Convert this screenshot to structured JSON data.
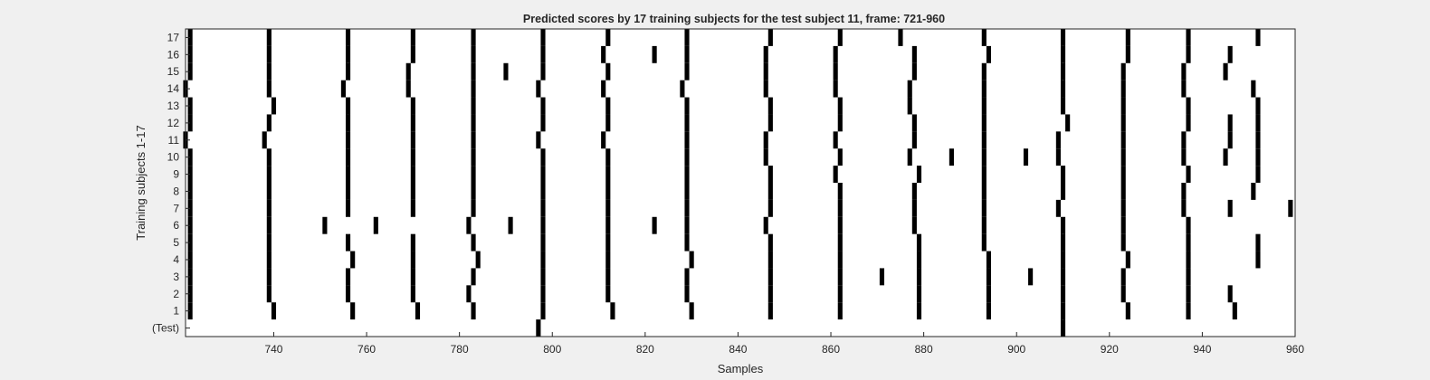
{
  "colors": {
    "background": "#f0f0f0",
    "plot_bg": "#ffffff",
    "mark": "#000000",
    "axis": "#262626"
  },
  "chart_data": {
    "type": "heatmap",
    "title": "Predicted scores by 17 training subjects for the test subject 11, frame: 721-960",
    "xlabel": "Samples",
    "ylabel": "Training subjects 1-17",
    "xlim": [
      721,
      960
    ],
    "xticks": [
      740,
      760,
      780,
      800,
      820,
      840,
      860,
      880,
      900,
      920,
      940,
      960
    ],
    "row_labels": [
      "(Test)",
      "1",
      "2",
      "3",
      "4",
      "5",
      "6",
      "7",
      "8",
      "9",
      "10",
      "11",
      "12",
      "13",
      "14",
      "15",
      "16",
      "17"
    ],
    "grid": false,
    "rows": [
      {
        "label": "(Test)",
        "samples": [
          797,
          910
        ]
      },
      {
        "label": "1",
        "samples": [
          722,
          740,
          757,
          771,
          783,
          798,
          813,
          830,
          847,
          862,
          879,
          894,
          910,
          924,
          937,
          947
        ]
      },
      {
        "label": "2",
        "samples": [
          722,
          739,
          756,
          770,
          782,
          798,
          812,
          829,
          847,
          862,
          879,
          894,
          910,
          923,
          937,
          946
        ]
      },
      {
        "label": "3",
        "samples": [
          722,
          739,
          756,
          770,
          783,
          798,
          812,
          829,
          847,
          862,
          871,
          879,
          894,
          903,
          910,
          923,
          937
        ]
      },
      {
        "label": "4",
        "samples": [
          722,
          739,
          757,
          770,
          784,
          798,
          812,
          830,
          847,
          862,
          879,
          894,
          910,
          924,
          937,
          952
        ]
      },
      {
        "label": "5",
        "samples": [
          722,
          739,
          756,
          770,
          783,
          798,
          812,
          829,
          847,
          862,
          879,
          893,
          910,
          923,
          937,
          952
        ]
      },
      {
        "label": "6",
        "samples": [
          722,
          739,
          751,
          762,
          782,
          791,
          798,
          812,
          822,
          829,
          846,
          862,
          878,
          893,
          910,
          923,
          937
        ]
      },
      {
        "label": "7",
        "samples": [
          722,
          739,
          756,
          770,
          783,
          798,
          812,
          829,
          847,
          862,
          878,
          893,
          909,
          923,
          936,
          946,
          959
        ]
      },
      {
        "label": "8",
        "samples": [
          722,
          739,
          756,
          770,
          783,
          798,
          812,
          829,
          847,
          862,
          878,
          893,
          910,
          923,
          936,
          951
        ]
      },
      {
        "label": "9",
        "samples": [
          722,
          739,
          756,
          770,
          783,
          798,
          812,
          829,
          847,
          861,
          879,
          893,
          910,
          923,
          937,
          952
        ]
      },
      {
        "label": "10",
        "samples": [
          722,
          739,
          756,
          770,
          783,
          798,
          812,
          829,
          846,
          862,
          877,
          886,
          893,
          902,
          909,
          923,
          936,
          945,
          952
        ]
      },
      {
        "label": "11",
        "samples": [
          721,
          738,
          756,
          770,
          783,
          797,
          811,
          829,
          846,
          861,
          878,
          893,
          909,
          923,
          936,
          946,
          952
        ]
      },
      {
        "label": "12",
        "samples": [
          722,
          739,
          756,
          770,
          783,
          798,
          812,
          829,
          847,
          862,
          878,
          893,
          911,
          923,
          937,
          946,
          952
        ]
      },
      {
        "label": "13",
        "samples": [
          722,
          740,
          756,
          770,
          783,
          798,
          812,
          829,
          847,
          862,
          877,
          893,
          910,
          923,
          937,
          952
        ]
      },
      {
        "label": "14",
        "samples": [
          721,
          739,
          755,
          769,
          783,
          797,
          811,
          828,
          846,
          861,
          877,
          893,
          910,
          923,
          936,
          951
        ]
      },
      {
        "label": "15",
        "samples": [
          722,
          739,
          756,
          769,
          783,
          790,
          798,
          812,
          829,
          846,
          861,
          878,
          893,
          910,
          923,
          936,
          945
        ]
      },
      {
        "label": "16",
        "samples": [
          722,
          739,
          756,
          770,
          783,
          798,
          811,
          822,
          829,
          846,
          861,
          878,
          894,
          910,
          924,
          937,
          946
        ]
      },
      {
        "label": "17",
        "samples": [
          722,
          739,
          756,
          770,
          783,
          798,
          812,
          829,
          847,
          862,
          875,
          893,
          910,
          924,
          937,
          952
        ]
      }
    ]
  }
}
